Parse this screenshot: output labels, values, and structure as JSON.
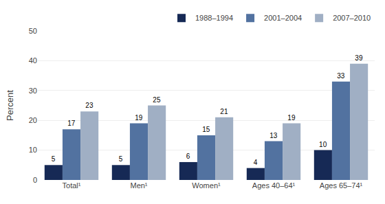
{
  "chart_data": {
    "type": "bar",
    "categories": [
      "Total¹",
      "Men¹",
      "Women¹",
      "Ages 40–64¹",
      "Ages 65–74¹"
    ],
    "series": [
      {
        "name": "1988–1994",
        "color": "#162955",
        "values": [
          5,
          5,
          6,
          4,
          10
        ]
      },
      {
        "name": "2001–2004",
        "color": "#5272a0",
        "values": [
          17,
          19,
          15,
          13,
          33
        ]
      },
      {
        "name": "2007–2010",
        "color": "#a0afc4",
        "values": [
          23,
          25,
          21,
          19,
          39
        ]
      }
    ],
    "ylabel": "Percent",
    "ylim": [
      0,
      50
    ],
    "yticks": [
      0,
      10,
      20,
      30,
      40,
      50
    ],
    "grid": true,
    "legend": "upper right",
    "data_labels": true
  }
}
